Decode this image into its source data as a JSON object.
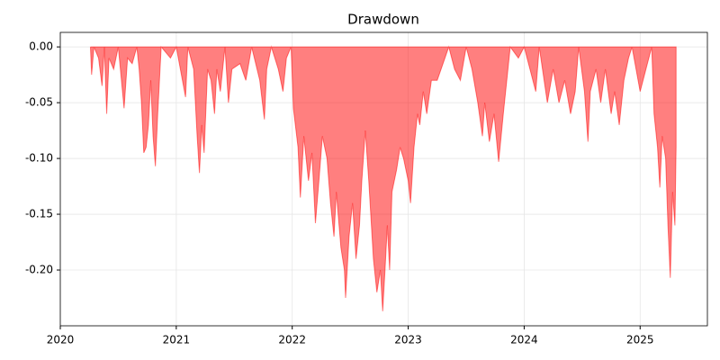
{
  "chart_data": {
    "type": "area",
    "title": "Drawdown",
    "color": "#ff0000",
    "grid": true,
    "x": [
      2020.26,
      2020.27,
      2020.29,
      2020.33,
      2020.36,
      2020.38,
      2020.4,
      2020.42,
      2020.46,
      2020.5,
      2020.55,
      2020.58,
      2020.62,
      2020.66,
      2020.68,
      2020.7,
      2020.72,
      2020.74,
      2020.76,
      2020.78,
      2020.8,
      2020.82,
      2020.84,
      2020.87,
      2020.95,
      2021.0,
      2021.08,
      2021.1,
      2021.15,
      2021.18,
      2021.2,
      2021.22,
      2021.24,
      2021.27,
      2021.3,
      2021.33,
      2021.35,
      2021.38,
      2021.42,
      2021.45,
      2021.48,
      2021.55,
      2021.6,
      2021.65,
      2021.72,
      2021.76,
      2021.78,
      2021.82,
      2021.88,
      2021.92,
      2021.95,
      2021.99,
      2022.01,
      2022.05,
      2022.07,
      2022.1,
      2022.14,
      2022.17,
      2022.2,
      2022.23,
      2022.26,
      2022.3,
      2022.33,
      2022.36,
      2022.38,
      2022.42,
      2022.45,
      2022.46,
      2022.49,
      2022.52,
      2022.55,
      2022.58,
      2022.6,
      2022.63,
      2022.66,
      2022.7,
      2022.73,
      2022.76,
      2022.78,
      2022.8,
      2022.82,
      2022.84,
      2022.86,
      2022.9,
      2022.93,
      2022.96,
      2023.0,
      2023.02,
      2023.05,
      2023.08,
      2023.1,
      2023.13,
      2023.16,
      2023.2,
      2023.25,
      2023.3,
      2023.35,
      2023.4,
      2023.45,
      2023.5,
      2023.55,
      2023.6,
      2023.64,
      2023.66,
      2023.7,
      2023.74,
      2023.78,
      2023.82,
      2023.86,
      2023.88,
      2023.95,
      2024.0,
      2024.05,
      2024.1,
      2024.13,
      2024.2,
      2024.25,
      2024.3,
      2024.35,
      2024.4,
      2024.44,
      2024.47,
      2024.52,
      2024.55,
      2024.57,
      2024.62,
      2024.66,
      2024.7,
      2024.75,
      2024.78,
      2024.82,
      2024.86,
      2024.9,
      2024.93,
      2025.0,
      2025.05,
      2025.1,
      2025.12,
      2025.15,
      2025.17,
      2025.19,
      2025.22,
      2025.24,
      2025.26,
      2025.28,
      2025.3,
      2025.31
    ],
    "values": [
      0,
      -0.025,
      0,
      -0.01,
      -0.035,
      0,
      -0.06,
      -0.01,
      -0.02,
      0,
      -0.055,
      -0.01,
      -0.015,
      0,
      -0.02,
      -0.05,
      -0.095,
      -0.09,
      -0.07,
      -0.03,
      -0.08,
      -0.107,
      -0.06,
      0,
      -0.01,
      0,
      -0.045,
      0,
      -0.02,
      -0.08,
      -0.113,
      -0.07,
      -0.095,
      -0.02,
      -0.03,
      -0.06,
      -0.02,
      -0.04,
      0,
      -0.05,
      -0.02,
      -0.015,
      -0.03,
      0,
      -0.03,
      -0.065,
      -0.02,
      0,
      -0.02,
      -0.04,
      -0.01,
      0,
      -0.055,
      -0.09,
      -0.135,
      -0.08,
      -0.12,
      -0.095,
      -0.158,
      -0.12,
      -0.08,
      -0.1,
      -0.14,
      -0.17,
      -0.13,
      -0.18,
      -0.2,
      -0.225,
      -0.17,
      -0.14,
      -0.19,
      -0.16,
      -0.12,
      -0.075,
      -0.12,
      -0.19,
      -0.22,
      -0.2,
      -0.237,
      -0.2,
      -0.16,
      -0.2,
      -0.13,
      -0.11,
      -0.09,
      -0.1,
      -0.12,
      -0.14,
      -0.09,
      -0.06,
      -0.07,
      -0.04,
      -0.06,
      -0.03,
      -0.03,
      -0.015,
      0,
      -0.02,
      -0.03,
      0,
      -0.02,
      -0.05,
      -0.08,
      -0.05,
      -0.085,
      -0.06,
      -0.103,
      -0.06,
      -0.02,
      0,
      -0.01,
      0,
      -0.02,
      -0.04,
      0,
      -0.05,
      -0.02,
      -0.05,
      -0.03,
      -0.06,
      -0.04,
      0,
      -0.04,
      -0.085,
      -0.04,
      -0.02,
      -0.05,
      -0.02,
      -0.06,
      -0.04,
      -0.07,
      -0.03,
      -0.01,
      0,
      -0.04,
      -0.02,
      0,
      -0.06,
      -0.09,
      -0.126,
      -0.08,
      -0.1,
      -0.16,
      -0.207,
      -0.13,
      -0.16,
      -0.09
    ],
    "xlim": [
      2020.0,
      2025.58
    ],
    "ylim": [
      -0.25,
      0.013
    ],
    "xticks": [
      2020,
      2021,
      2022,
      2023,
      2024,
      2025
    ],
    "yticks": [
      {
        "value": 0,
        "label": "0.00"
      },
      {
        "value": -0.05,
        "label": "-0.05"
      },
      {
        "value": -0.1,
        "label": "-0.10"
      },
      {
        "value": -0.15,
        "label": "-0.15"
      },
      {
        "value": -0.2,
        "label": "-0.20"
      }
    ]
  }
}
